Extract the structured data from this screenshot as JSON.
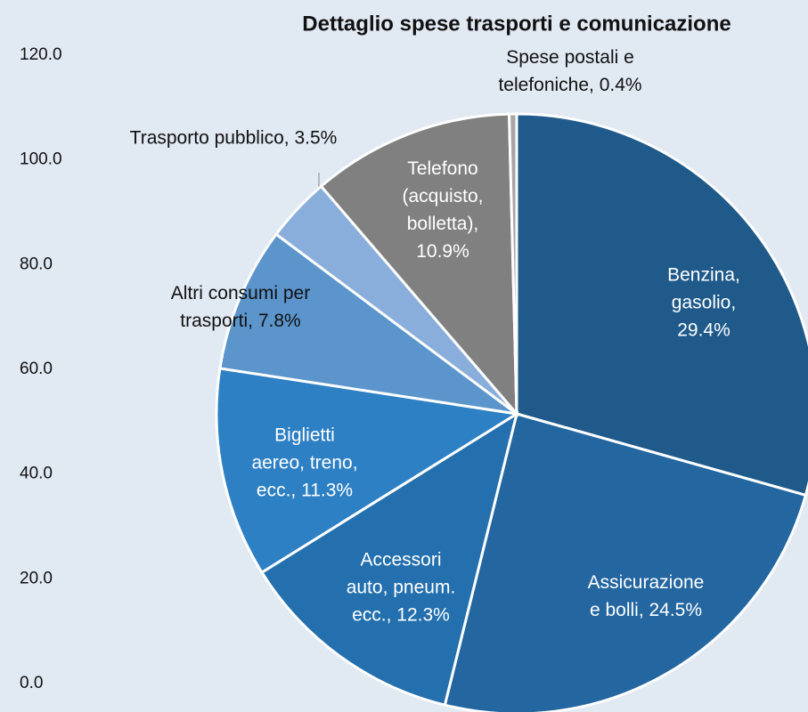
{
  "chart_data": {
    "type": "pie",
    "title": "Dettaglio spese trasporti e comunicazione",
    "values": [
      29.4,
      24.5,
      12.3,
      11.3,
      7.8,
      3.5,
      10.9,
      0.4
    ],
    "value_labels": [
      "Benzina,\ngasolio, 29.4%",
      "Assicurazione\ne bolli, 24.5%",
      "Accessori\nauto, pneum.\necc., 12.3%",
      "Biglietti\naereo, treno,\necc., 11.3%",
      "Altri consumi per\ntrasporti, 7.8%",
      "Trasporto pubblico, 3.5%",
      "Telefono\n(acquisto,\nbolletta),\n10.9%",
      "Spese postali e\ntelefoniche, 0.4%"
    ],
    "colors": [
      "#1f5a8a",
      "#2366a0",
      "#2470ae",
      "#2e80c4",
      "#5b95cc",
      "#8aaedb",
      "#808080",
      "#a6a6a6"
    ],
    "ylim": [
      0,
      120
    ],
    "yticks": [
      {
        "value": 0,
        "label": "0.0"
      },
      {
        "value": 20,
        "label": "20.0"
      },
      {
        "value": 40,
        "label": "40.0"
      },
      {
        "value": 60,
        "label": "60.0"
      },
      {
        "value": 80,
        "label": "80.0"
      },
      {
        "value": 100,
        "label": "100.0"
      },
      {
        "value": 120,
        "label": "120.0"
      }
    ]
  }
}
